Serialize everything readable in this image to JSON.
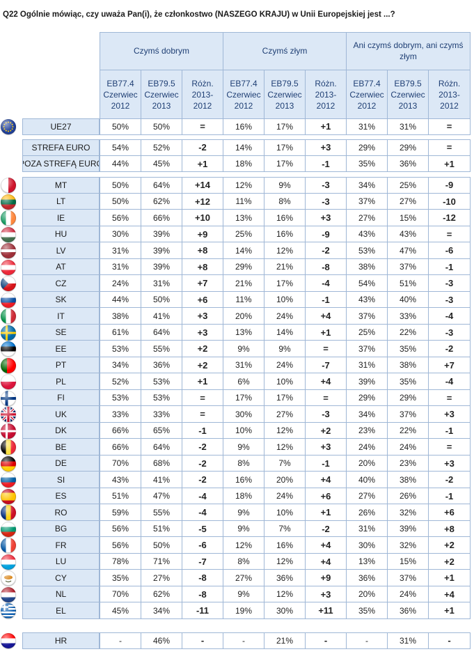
{
  "title": "Q22 Ogólnie mówiąc, czy uważa Pan(i), że członkostwo (NASZEGO KRAJU) w Unii Europejskiej jest ...?",
  "groups": [
    "Czymś dobrym",
    "Czymś złym",
    "Ani czymś dobrym, ani czymś złym"
  ],
  "subheaders": [
    "EB77.4 Czerwiec 2012",
    "EB79.5 Czerwiec 2013",
    "Różn. 2013-2012"
  ],
  "flag_colors": {
    "EU": "#1f3f99",
    "MT": "#ffffff",
    "LT": "#fdb913",
    "IE": "#169b62",
    "HU": "#cd2a3e",
    "LV": "#9e3039",
    "AT": "#ed2939",
    "CZ": "#11457e",
    "SK": "#0b4ea2",
    "IT": "#009246",
    "SE": "#006aa7",
    "EE": "#0072ce",
    "PT": "#006600",
    "PL": "#dc143c",
    "FI": "#003580",
    "UK": "#012169",
    "DK": "#c60c30",
    "BE": "#000000",
    "DE": "#dd0000",
    "SI": "#005da4",
    "ES": "#c60b1e",
    "RO": "#002b7f",
    "BG": "#00966e",
    "FR": "#0055a4",
    "LU": "#00a1de",
    "CY": "#d57800",
    "NL": "#21468b",
    "EL": "#0d5eaf",
    "HR": "#171796"
  },
  "chart_data": {
    "type": "table",
    "title": "Q22 Ogólnie mówiąc, czy uważa Pan(i), że członkostwo (NASZEGO KRAJU) w Unii Europejskiej jest ...?",
    "columns": [
      "Czymś dobrym EB77.4 Czerwiec 2012",
      "Czymś dobrym EB79.5 Czerwiec 2013",
      "Czymś dobrym Różn. 2013-2012",
      "Czymś złym EB77.4 Czerwiec 2012",
      "Czymś złym EB79.5 Czerwiec 2013",
      "Czymś złym Różn. 2013-2012",
      "Ani czymś dobrym, ani czymś złym EB77.4 Czerwiec 2012",
      "Ani czymś dobrym, ani czymś złym EB79.5 Czerwiec 2013",
      "Ani czymś dobrym, ani czymś złym Różn. 2013-2012"
    ],
    "blocks": [
      {
        "rows": [
          {
            "label": "UE27",
            "flag": "EU",
            "values": [
              "50%",
              "50%",
              "=",
              "16%",
              "17%",
              "+1",
              "31%",
              "31%",
              "="
            ]
          }
        ]
      },
      {
        "rows": [
          {
            "label": "STREFA EURO",
            "flag": "",
            "values": [
              "54%",
              "52%",
              "-2",
              "14%",
              "17%",
              "+3",
              "29%",
              "29%",
              "="
            ]
          },
          {
            "label": "POZA STREFĄ EURO",
            "flag": "",
            "values": [
              "44%",
              "45%",
              "+1",
              "18%",
              "17%",
              "-1",
              "35%",
              "36%",
              "+1"
            ]
          }
        ]
      },
      {
        "rows": [
          {
            "label": "MT",
            "flag": "MT",
            "values": [
              "50%",
              "64%",
              "+14",
              "12%",
              "9%",
              "-3",
              "34%",
              "25%",
              "-9"
            ]
          },
          {
            "label": "LT",
            "flag": "LT",
            "values": [
              "50%",
              "62%",
              "+12",
              "11%",
              "8%",
              "-3",
              "37%",
              "27%",
              "-10"
            ]
          },
          {
            "label": "IE",
            "flag": "IE",
            "values": [
              "56%",
              "66%",
              "+10",
              "13%",
              "16%",
              "+3",
              "27%",
              "15%",
              "-12"
            ]
          },
          {
            "label": "HU",
            "flag": "HU",
            "values": [
              "30%",
              "39%",
              "+9",
              "25%",
              "16%",
              "-9",
              "43%",
              "43%",
              "="
            ]
          },
          {
            "label": "LV",
            "flag": "LV",
            "values": [
              "31%",
              "39%",
              "+8",
              "14%",
              "12%",
              "-2",
              "53%",
              "47%",
              "-6"
            ]
          },
          {
            "label": "AT",
            "flag": "AT",
            "values": [
              "31%",
              "39%",
              "+8",
              "29%",
              "21%",
              "-8",
              "38%",
              "37%",
              "-1"
            ]
          },
          {
            "label": "CZ",
            "flag": "CZ",
            "values": [
              "24%",
              "31%",
              "+7",
              "21%",
              "17%",
              "-4",
              "54%",
              "51%",
              "-3"
            ]
          },
          {
            "label": "SK",
            "flag": "SK",
            "values": [
              "44%",
              "50%",
              "+6",
              "11%",
              "10%",
              "-1",
              "43%",
              "40%",
              "-3"
            ]
          },
          {
            "label": "IT",
            "flag": "IT",
            "values": [
              "38%",
              "41%",
              "+3",
              "20%",
              "24%",
              "+4",
              "37%",
              "33%",
              "-4"
            ]
          },
          {
            "label": "SE",
            "flag": "SE",
            "values": [
              "61%",
              "64%",
              "+3",
              "13%",
              "14%",
              "+1",
              "25%",
              "22%",
              "-3"
            ]
          },
          {
            "label": "EE",
            "flag": "EE",
            "values": [
              "53%",
              "55%",
              "+2",
              "9%",
              "9%",
              "=",
              "37%",
              "35%",
              "-2"
            ]
          },
          {
            "label": "PT",
            "flag": "PT",
            "values": [
              "34%",
              "36%",
              "+2",
              "31%",
              "24%",
              "-7",
              "31%",
              "38%",
              "+7"
            ]
          },
          {
            "label": "PL",
            "flag": "PL",
            "values": [
              "52%",
              "53%",
              "+1",
              "6%",
              "10%",
              "+4",
              "39%",
              "35%",
              "-4"
            ]
          },
          {
            "label": "FI",
            "flag": "FI",
            "values": [
              "53%",
              "53%",
              "=",
              "17%",
              "17%",
              "=",
              "29%",
              "29%",
              "="
            ]
          },
          {
            "label": "UK",
            "flag": "UK",
            "values": [
              "33%",
              "33%",
              "=",
              "30%",
              "27%",
              "-3",
              "34%",
              "37%",
              "+3"
            ]
          },
          {
            "label": "DK",
            "flag": "DK",
            "values": [
              "66%",
              "65%",
              "-1",
              "10%",
              "12%",
              "+2",
              "23%",
              "22%",
              "-1"
            ]
          },
          {
            "label": "BE",
            "flag": "BE",
            "values": [
              "66%",
              "64%",
              "-2",
              "9%",
              "12%",
              "+3",
              "24%",
              "24%",
              "="
            ]
          },
          {
            "label": "DE",
            "flag": "DE",
            "values": [
              "70%",
              "68%",
              "-2",
              "8%",
              "7%",
              "-1",
              "20%",
              "23%",
              "+3"
            ]
          },
          {
            "label": "SI",
            "flag": "SI",
            "values": [
              "43%",
              "41%",
              "-2",
              "16%",
              "20%",
              "+4",
              "40%",
              "38%",
              "-2"
            ]
          },
          {
            "label": "ES",
            "flag": "ES",
            "values": [
              "51%",
              "47%",
              "-4",
              "18%",
              "24%",
              "+6",
              "27%",
              "26%",
              "-1"
            ]
          },
          {
            "label": "RO",
            "flag": "RO",
            "values": [
              "59%",
              "55%",
              "-4",
              "9%",
              "10%",
              "+1",
              "26%",
              "32%",
              "+6"
            ]
          },
          {
            "label": "BG",
            "flag": "BG",
            "values": [
              "56%",
              "51%",
              "-5",
              "9%",
              "7%",
              "-2",
              "31%",
              "39%",
              "+8"
            ]
          },
          {
            "label": "FR",
            "flag": "FR",
            "values": [
              "56%",
              "50%",
              "-6",
              "12%",
              "16%",
              "+4",
              "30%",
              "32%",
              "+2"
            ]
          },
          {
            "label": "LU",
            "flag": "LU",
            "values": [
              "78%",
              "71%",
              "-7",
              "8%",
              "12%",
              "+4",
              "13%",
              "15%",
              "+2"
            ]
          },
          {
            "label": "CY",
            "flag": "CY",
            "values": [
              "35%",
              "27%",
              "-8",
              "27%",
              "36%",
              "+9",
              "36%",
              "37%",
              "+1"
            ]
          },
          {
            "label": "NL",
            "flag": "NL",
            "values": [
              "70%",
              "62%",
              "-8",
              "9%",
              "12%",
              "+3",
              "20%",
              "24%",
              "+4"
            ]
          },
          {
            "label": "EL",
            "flag": "EL",
            "values": [
              "45%",
              "34%",
              "-11",
              "19%",
              "30%",
              "+11",
              "35%",
              "36%",
              "+1"
            ]
          }
        ]
      },
      {
        "rows": [
          {
            "label": "HR",
            "flag": "HR",
            "values": [
              "-",
              "46%",
              "-",
              "-",
              "21%",
              "-",
              "-",
              "31%",
              "-"
            ]
          }
        ]
      }
    ]
  }
}
